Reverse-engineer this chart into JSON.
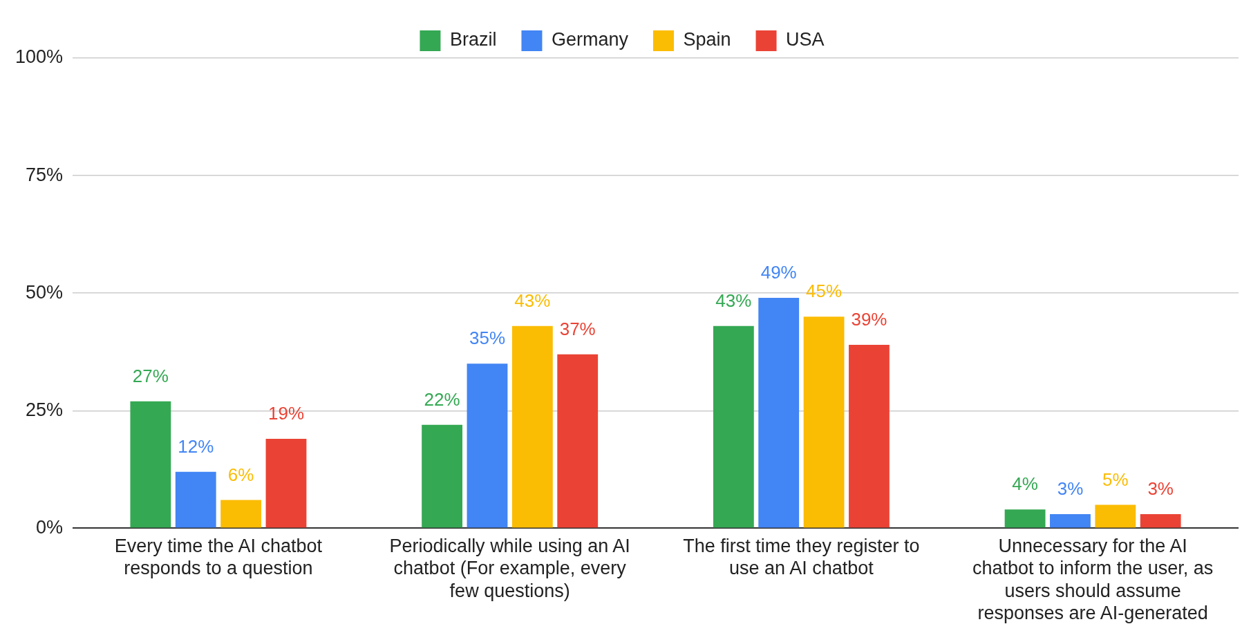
{
  "chart_data": {
    "type": "bar",
    "categories": [
      "Every time the AI chatbot responds to a question",
      "Periodically while using an AI chatbot (For example, every few questions)",
      "The first time they register to use an AI chatbot",
      "Unnecessary for the AI chatbot to inform the user, as users should assume responses are AI-generated"
    ],
    "series": [
      {
        "name": "Brazil",
        "color": "#34a853",
        "values": [
          27,
          22,
          43,
          4
        ],
        "value_labels": [
          "27%",
          "22%",
          "43%",
          "4%"
        ]
      },
      {
        "name": "Germany",
        "color": "#4285f4",
        "values": [
          12,
          35,
          49,
          3
        ],
        "value_labels": [
          "12%",
          "35%",
          "49%",
          "3%"
        ]
      },
      {
        "name": "Spain",
        "color": "#fbbc04",
        "values": [
          6,
          43,
          45,
          5
        ],
        "value_labels": [
          "6%",
          "43%",
          "45%",
          "5%"
        ]
      },
      {
        "name": "USA",
        "color": "#ea4335",
        "values": [
          19,
          37,
          39,
          3
        ],
        "value_labels": [
          "19%",
          "37%",
          "39%",
          "3%"
        ]
      }
    ],
    "ylim": [
      0,
      100
    ],
    "yticks": [
      {
        "value": 0,
        "label": "0%"
      },
      {
        "value": 25,
        "label": "25%"
      },
      {
        "value": 50,
        "label": "50%"
      },
      {
        "value": 75,
        "label": "75%"
      },
      {
        "value": 100,
        "label": "100%"
      }
    ],
    "grid": "y",
    "legend": "top"
  }
}
